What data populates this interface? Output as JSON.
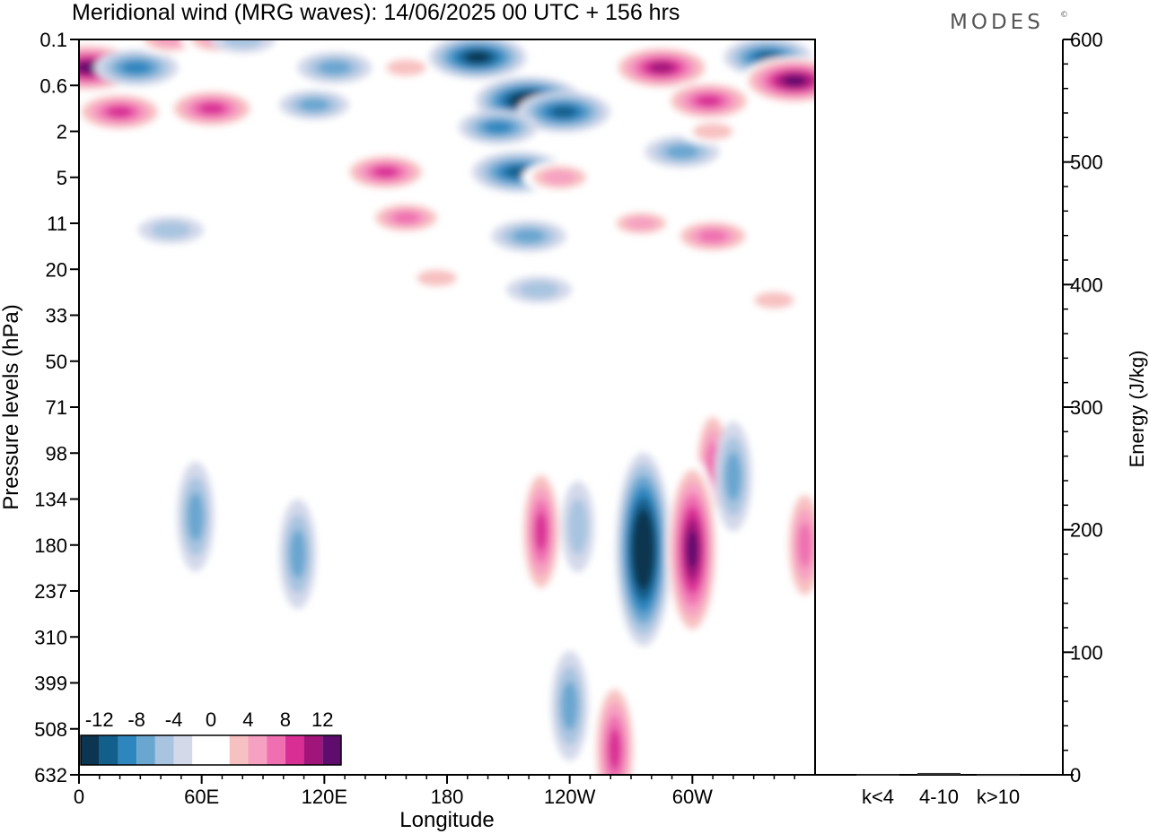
{
  "header": {
    "title": "Meridional wind (MRG waves):  14/06/2025  00 UTC  + 156 hrs",
    "brand": "MODES",
    "brand_mark": "©"
  },
  "chart_data": [
    {
      "type": "heatmap",
      "title": "Meridional wind (MRG waves):  14/06/2025  00 UTC  + 156 hrs",
      "xlabel": "Longitude",
      "ylabel": "Pressure levels (hPa)",
      "x_ticks": [
        "0",
        "60E",
        "120E",
        "180",
        "120W",
        "60W"
      ],
      "x_tick_values": [
        0,
        60,
        120,
        180,
        240,
        300
      ],
      "xlim": [
        0,
        360
      ],
      "y_scale": "log-pressure (top = low pressure)",
      "y_ticks": [
        "0.1",
        "0.6",
        "2",
        "5",
        "11",
        "20",
        "33",
        "50",
        "71",
        "98",
        "134",
        "180",
        "237",
        "310",
        "399",
        "508",
        "632"
      ],
      "colorbar": {
        "labels": [
          "-12",
          "-8",
          "-4",
          "0",
          "4",
          "8",
          "12"
        ],
        "levels": [
          -14,
          -12,
          -10,
          -8,
          -6,
          -4,
          -2,
          2,
          4,
          6,
          8,
          10,
          12,
          14
        ],
        "colors": [
          "#0b3550",
          "#135f8c",
          "#2e86bf",
          "#69a6d0",
          "#a8c4e0",
          "#d4d9ea",
          "#ffffff",
          "#ffffff",
          "#f8c1c1",
          "#f6a0c2",
          "#ef6fb1",
          "#d92f95",
          "#a1157a",
          "#5e0d6e"
        ],
        "placement": "bottom-left"
      },
      "features": [
        {
          "lon": 5,
          "level": "0.3",
          "value": 14
        },
        {
          "lon": 28,
          "level": "0.3",
          "value": -8
        },
        {
          "lon": 45,
          "level": "0.1",
          "value": 6
        },
        {
          "lon": 68,
          "level": "0.1",
          "value": 6
        },
        {
          "lon": 80,
          "level": "0.1",
          "value": -4
        },
        {
          "lon": 125,
          "level": "0.3",
          "value": -6
        },
        {
          "lon": 115,
          "level": "1",
          "value": -5
        },
        {
          "lon": 160,
          "level": "0.3",
          "value": 4
        },
        {
          "lon": 195,
          "level": "0.2",
          "value": -11
        },
        {
          "lon": 220,
          "level": "0.9",
          "value": -13
        },
        {
          "lon": 237,
          "level": "1.2",
          "value": -10
        },
        {
          "lon": 205,
          "level": "1.8",
          "value": -7
        },
        {
          "lon": 285,
          "level": "0.3",
          "value": 12
        },
        {
          "lon": 308,
          "level": "0.9",
          "value": 10
        },
        {
          "lon": 337,
          "level": "0.2",
          "value": -9
        },
        {
          "lon": 350,
          "level": "0.5",
          "value": 13
        },
        {
          "lon": 20,
          "level": "1.2",
          "value": 10
        },
        {
          "lon": 65,
          "level": "1.1",
          "value": 10
        },
        {
          "lon": 150,
          "level": "4.5",
          "value": 9
        },
        {
          "lon": 215,
          "level": "4.5",
          "value": -10
        },
        {
          "lon": 235,
          "level": "5",
          "value": 6
        },
        {
          "lon": 295,
          "level": "3",
          "value": -6
        },
        {
          "lon": 310,
          "level": "2",
          "value": 4
        },
        {
          "lon": 160,
          "level": "10",
          "value": 7
        },
        {
          "lon": 220,
          "level": "13",
          "value": -6
        },
        {
          "lon": 275,
          "level": "11",
          "value": 5
        },
        {
          "lon": 310,
          "level": "13",
          "value": 8
        },
        {
          "lon": 45,
          "level": "12",
          "value": -4
        },
        {
          "lon": 175,
          "level": "22",
          "value": 4
        },
        {
          "lon": 225,
          "level": "25",
          "value": -4
        },
        {
          "lon": 340,
          "level": "28",
          "value": 4
        },
        {
          "lon": 310,
          "level": "105",
          "value": 7
        },
        {
          "lon": 320,
          "level": "115",
          "value": -6
        },
        {
          "lon": 226,
          "level": "165",
          "value": 9
        },
        {
          "lon": 244,
          "level": "160",
          "value": -4
        },
        {
          "lon": 276,
          "level": "185",
          "value": -15
        },
        {
          "lon": 300,
          "level": "185",
          "value": 14
        },
        {
          "lon": 355,
          "level": "180",
          "value": 8
        },
        {
          "lon": 107,
          "level": "190",
          "value": -6
        },
        {
          "lon": 57,
          "level": "150",
          "value": -6
        },
        {
          "lon": 262,
          "level": "560",
          "value": 10
        },
        {
          "lon": 240,
          "level": "450",
          "value": -6
        }
      ]
    },
    {
      "type": "bar",
      "title": "",
      "xlabel": "",
      "ylabel": "Energy (J/kg)",
      "categories": [
        "k<4",
        "4-10",
        "k>10"
      ],
      "values": [
        0.4,
        1.5,
        0.3
      ],
      "ylim": [
        0,
        600
      ],
      "y_ticks": [
        "0",
        "100",
        "200",
        "300",
        "400",
        "500",
        "600"
      ],
      "y_axis_side": "right"
    }
  ]
}
